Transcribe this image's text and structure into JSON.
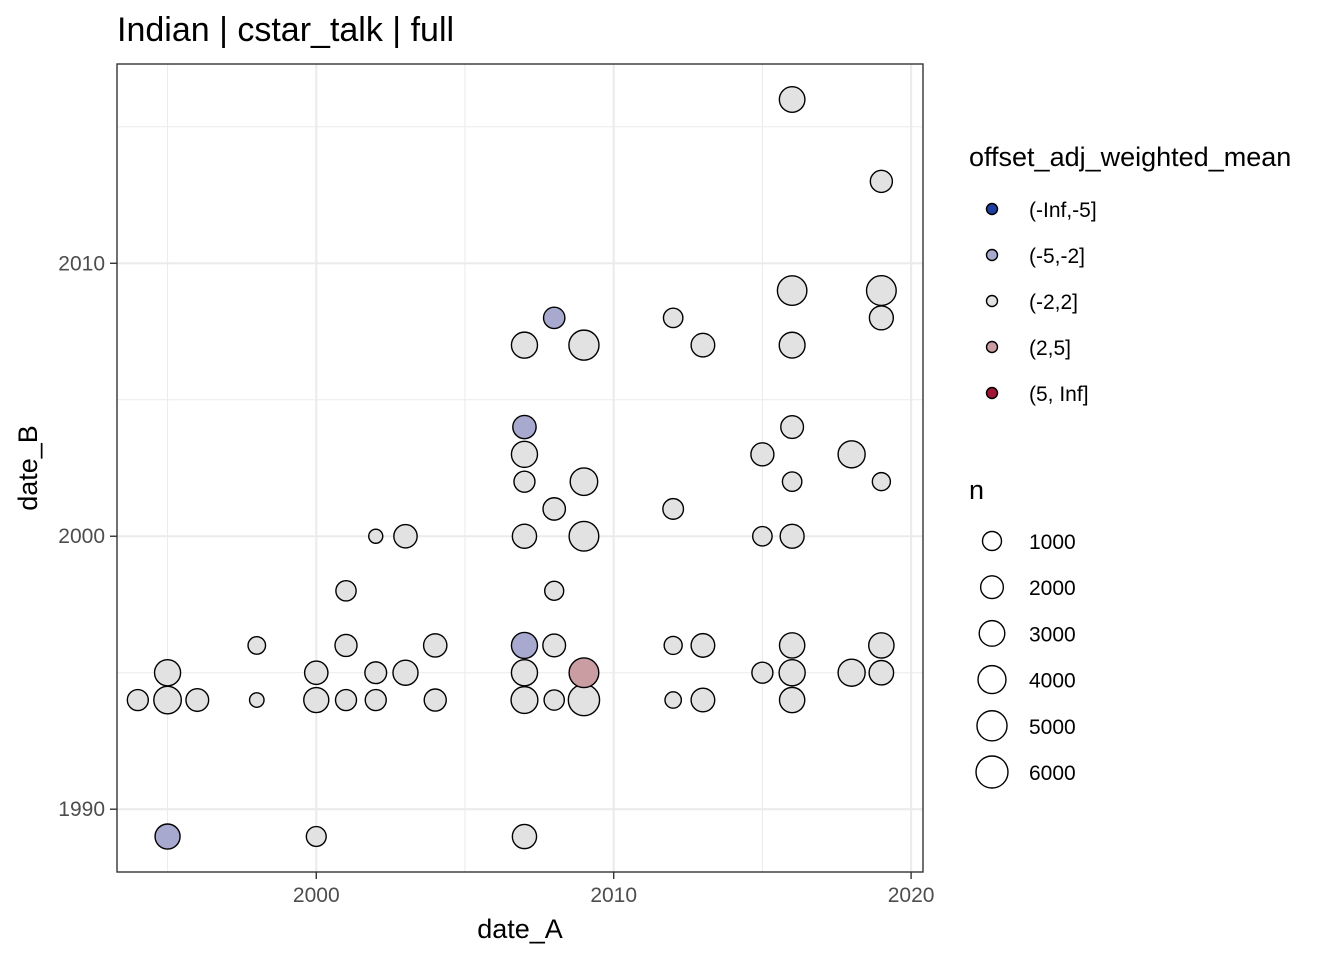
{
  "chart_data": {
    "type": "scatter",
    "title": "Indian | cstar_talk | full",
    "xlabel": "date_A",
    "ylabel": "date_B",
    "xlim": [
      1993.3,
      2020.4
    ],
    "ylim": [
      1987.7,
      2017.3
    ],
    "x_ticks": [
      2000,
      2010,
      2020
    ],
    "y_ticks": [
      1990,
      2000,
      2010
    ],
    "grid": true,
    "legend_position": "right",
    "color_legend": {
      "title": "offset_adj_weighted_mean",
      "entries": [
        {
          "label": "(-Inf,-5]",
          "color": "#1f3f9e"
        },
        {
          "label": "(-5,-2]",
          "color": "#a7a9cf"
        },
        {
          "label": "(-2,2]",
          "color": "#e2e2e2"
        },
        {
          "label": "(2,5]",
          "color": "#c99da2"
        },
        {
          "label": "(5, Inf]",
          "color": "#9e1634"
        }
      ]
    },
    "size_legend": {
      "title": "n",
      "entries": [
        {
          "label": "1000",
          "value": 1000
        },
        {
          "label": "2000",
          "value": 2000
        },
        {
          "label": "3000",
          "value": 3000
        },
        {
          "label": "4000",
          "value": 4000
        },
        {
          "label": "5000",
          "value": 5000
        },
        {
          "label": "6000",
          "value": 6000
        }
      ]
    },
    "points": [
      {
        "x": 1994,
        "y": 1994,
        "n": 1500,
        "cat": "(-2,2]"
      },
      {
        "x": 1995,
        "y": 1994,
        "n": 3800,
        "cat": "(-2,2]"
      },
      {
        "x": 1995,
        "y": 1995,
        "n": 3200,
        "cat": "(-2,2]"
      },
      {
        "x": 1996,
        "y": 1994,
        "n": 2000,
        "cat": "(-2,2]"
      },
      {
        "x": 1995,
        "y": 1989,
        "n": 2800,
        "cat": "(-5,-2]"
      },
      {
        "x": 1998,
        "y": 1996,
        "n": 700,
        "cat": "(-2,2]"
      },
      {
        "x": 1998,
        "y": 1994,
        "n": 250,
        "cat": "(-2,2]"
      },
      {
        "x": 2000,
        "y": 1995,
        "n": 2200,
        "cat": "(-2,2]"
      },
      {
        "x": 2000,
        "y": 1994,
        "n": 2800,
        "cat": "(-2,2]"
      },
      {
        "x": 2000,
        "y": 1989,
        "n": 1200,
        "cat": "(-2,2]"
      },
      {
        "x": 2001,
        "y": 1998,
        "n": 1300,
        "cat": "(-2,2]"
      },
      {
        "x": 2001,
        "y": 1996,
        "n": 1800,
        "cat": "(-2,2]"
      },
      {
        "x": 2001,
        "y": 1994,
        "n": 1500,
        "cat": "(-2,2]"
      },
      {
        "x": 2002,
        "y": 2000,
        "n": 200,
        "cat": "(-2,2]"
      },
      {
        "x": 2002,
        "y": 1995,
        "n": 1700,
        "cat": "(-2,2]"
      },
      {
        "x": 2002,
        "y": 1994,
        "n": 1500,
        "cat": "(-2,2]"
      },
      {
        "x": 2003,
        "y": 2000,
        "n": 2200,
        "cat": "(-2,2]"
      },
      {
        "x": 2003,
        "y": 1995,
        "n": 2800,
        "cat": "(-2,2]"
      },
      {
        "x": 2004,
        "y": 1996,
        "n": 2200,
        "cat": "(-2,2]"
      },
      {
        "x": 2004,
        "y": 1994,
        "n": 1800,
        "cat": "(-2,2]"
      },
      {
        "x": 2007,
        "y": 2007,
        "n": 3200,
        "cat": "(-2,2]"
      },
      {
        "x": 2007,
        "y": 2004,
        "n": 2200,
        "cat": "(-5,-2]"
      },
      {
        "x": 2007,
        "y": 2003,
        "n": 3200,
        "cat": "(-2,2]"
      },
      {
        "x": 2007,
        "y": 2002,
        "n": 1500,
        "cat": "(-2,2]"
      },
      {
        "x": 2007,
        "y": 2000,
        "n": 2500,
        "cat": "(-2,2]"
      },
      {
        "x": 2007,
        "y": 1996,
        "n": 3200,
        "cat": "(-5,-2]"
      },
      {
        "x": 2007,
        "y": 1995,
        "n": 3200,
        "cat": "(-2,2]"
      },
      {
        "x": 2007,
        "y": 1994,
        "n": 3500,
        "cat": "(-2,2]"
      },
      {
        "x": 2007,
        "y": 1989,
        "n": 2500,
        "cat": "(-2,2]"
      },
      {
        "x": 2008,
        "y": 2008,
        "n": 1600,
        "cat": "(-5,-2]"
      },
      {
        "x": 2008,
        "y": 2001,
        "n": 1900,
        "cat": "(-2,2]"
      },
      {
        "x": 2008,
        "y": 1998,
        "n": 1000,
        "cat": "(-2,2]"
      },
      {
        "x": 2008,
        "y": 1996,
        "n": 2000,
        "cat": "(-2,2]"
      },
      {
        "x": 2008,
        "y": 1994,
        "n": 1300,
        "cat": "(-2,2]"
      },
      {
        "x": 2009,
        "y": 2007,
        "n": 5000,
        "cat": "(-2,2]"
      },
      {
        "x": 2009,
        "y": 2002,
        "n": 3800,
        "cat": "(-2,2]"
      },
      {
        "x": 2009,
        "y": 2000,
        "n": 4800,
        "cat": "(-2,2]"
      },
      {
        "x": 2009,
        "y": 1995,
        "n": 4800,
        "cat": "(2,5]"
      },
      {
        "x": 2009,
        "y": 1994,
        "n": 5600,
        "cat": "(-2,2]"
      },
      {
        "x": 2012,
        "y": 2008,
        "n": 1100,
        "cat": "(-2,2]"
      },
      {
        "x": 2012,
        "y": 2001,
        "n": 1400,
        "cat": "(-2,2]"
      },
      {
        "x": 2012,
        "y": 1996,
        "n": 800,
        "cat": "(-2,2]"
      },
      {
        "x": 2012,
        "y": 1994,
        "n": 500,
        "cat": "(-2,2]"
      },
      {
        "x": 2013,
        "y": 2007,
        "n": 2300,
        "cat": "(-2,2]"
      },
      {
        "x": 2013,
        "y": 1996,
        "n": 2300,
        "cat": "(-2,2]"
      },
      {
        "x": 2013,
        "y": 1994,
        "n": 2300,
        "cat": "(-2,2]"
      },
      {
        "x": 2015,
        "y": 2003,
        "n": 2100,
        "cat": "(-2,2]"
      },
      {
        "x": 2015,
        "y": 2000,
        "n": 1100,
        "cat": "(-2,2]"
      },
      {
        "x": 2015,
        "y": 1995,
        "n": 1500,
        "cat": "(-2,2]"
      },
      {
        "x": 2016,
        "y": 2016,
        "n": 3000,
        "cat": "(-2,2]"
      },
      {
        "x": 2016,
        "y": 2009,
        "n": 4700,
        "cat": "(-2,2]"
      },
      {
        "x": 2016,
        "y": 2007,
        "n": 3100,
        "cat": "(-2,2]"
      },
      {
        "x": 2016,
        "y": 2004,
        "n": 2000,
        "cat": "(-2,2]"
      },
      {
        "x": 2016,
        "y": 2002,
        "n": 1100,
        "cat": "(-2,2]"
      },
      {
        "x": 2016,
        "y": 2000,
        "n": 2400,
        "cat": "(-2,2]"
      },
      {
        "x": 2016,
        "y": 1996,
        "n": 2900,
        "cat": "(-2,2]"
      },
      {
        "x": 2016,
        "y": 1995,
        "n": 3200,
        "cat": "(-2,2]"
      },
      {
        "x": 2016,
        "y": 1994,
        "n": 2900,
        "cat": "(-2,2]"
      },
      {
        "x": 2018,
        "y": 2003,
        "n": 3600,
        "cat": "(-2,2]"
      },
      {
        "x": 2018,
        "y": 1995,
        "n": 3600,
        "cat": "(-2,2]"
      },
      {
        "x": 2019,
        "y": 2013,
        "n": 1800,
        "cat": "(-2,2]"
      },
      {
        "x": 2019,
        "y": 2009,
        "n": 4800,
        "cat": "(-2,2]"
      },
      {
        "x": 2019,
        "y": 2008,
        "n": 2400,
        "cat": "(-2,2]"
      },
      {
        "x": 2019,
        "y": 2002,
        "n": 800,
        "cat": "(-2,2]"
      },
      {
        "x": 2019,
        "y": 1996,
        "n": 2900,
        "cat": "(-2,2]"
      },
      {
        "x": 2019,
        "y": 1995,
        "n": 2600,
        "cat": "(-2,2]"
      }
    ]
  }
}
